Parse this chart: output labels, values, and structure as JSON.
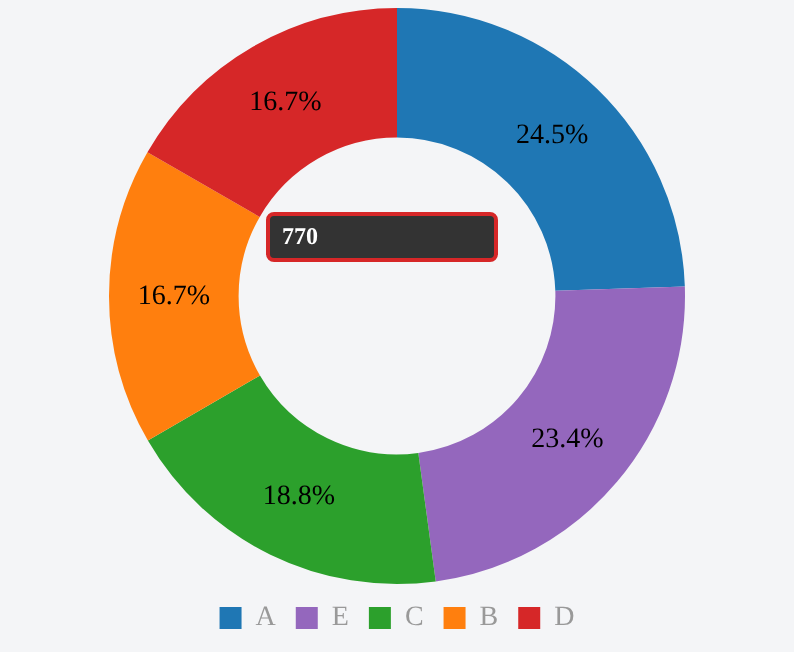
{
  "chart_data": {
    "type": "donut",
    "categories": [
      "A",
      "E",
      "C",
      "B",
      "D"
    ],
    "values": [
      24.5,
      23.4,
      18.8,
      16.7,
      16.7
    ],
    "colors": [
      "#1f77b4",
      "#9467bd",
      "#2ca02c",
      "#ff7f0e",
      "#d62728"
    ],
    "value_labels": [
      "24.5%",
      "23.4%",
      "18.8%",
      "16.7%",
      "16.7%"
    ],
    "legend": "bottom",
    "annotations": [
      "770"
    ]
  }
}
